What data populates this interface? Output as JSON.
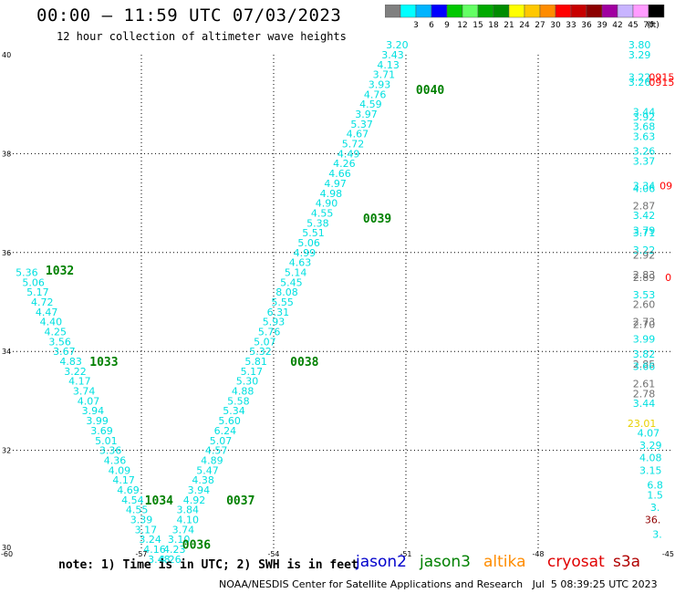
{
  "header": {
    "title": "00:00 – 11:59 UTC 07/03/2023",
    "subtitle": "12 hour collection of altimeter wave heights"
  },
  "colorbar": {
    "unit_label": "(ft)",
    "bins": [
      {
        "label": "",
        "color": "#808080"
      },
      {
        "label": "3",
        "color": "#00ffff"
      },
      {
        "label": "6",
        "color": "#00b4ff"
      },
      {
        "label": "9",
        "color": "#0000ff"
      },
      {
        "label": "12",
        "color": "#00c800"
      },
      {
        "label": "15",
        "color": "#64ff64"
      },
      {
        "label": "18",
        "color": "#00aa00"
      },
      {
        "label": "21",
        "color": "#008c00"
      },
      {
        "label": "24",
        "color": "#ffff00"
      },
      {
        "label": "27",
        "color": "#ffc800"
      },
      {
        "label": "30",
        "color": "#ff8c00"
      },
      {
        "label": "33",
        "color": "#ff0000"
      },
      {
        "label": "36",
        "color": "#c80000"
      },
      {
        "label": "39",
        "color": "#8c0000"
      },
      {
        "label": "42",
        "color": "#a000a0"
      },
      {
        "label": "45",
        "color": "#c8b4ff"
      },
      {
        "label": "70",
        "color": "#ff9cff"
      },
      {
        "label": "",
        "color": "#000000"
      }
    ]
  },
  "chart_data": {
    "type": "scatter",
    "title": "00:00 – 11:59 UTC 07/03/2023",
    "subtitle": "12 hour collection of altimeter wave heights",
    "xlim": [
      -60,
      -45
    ],
    "ylim": [
      30,
      40
    ],
    "x_ticks": [
      "-60",
      "-57",
      "-54",
      "-51",
      "-48",
      "-45"
    ],
    "y_ticks": [
      "30",
      "32",
      "34",
      "36",
      "38",
      "40"
    ],
    "grid": true,
    "colors": {
      "cyan": "#00e0e0",
      "gray": "#707070",
      "green": "#008000",
      "red": "#ff0000",
      "yellow": "#e8d000",
      "darkred": "#900000"
    },
    "time_labels": [
      {
        "text": "1032",
        "x": -58.85,
        "y": 35.65
      },
      {
        "text": "1033",
        "x": -57.85,
        "y": 33.8
      },
      {
        "text": "1034",
        "x": -56.6,
        "y": 31.0
      },
      {
        "text": "0036",
        "x": -55.75,
        "y": 30.1
      },
      {
        "text": "0037",
        "x": -54.75,
        "y": 31.0
      },
      {
        "text": "0038",
        "x": -53.3,
        "y": 33.8
      },
      {
        "text": "0039",
        "x": -51.65,
        "y": 36.7
      },
      {
        "text": "0040",
        "x": -50.45,
        "y": 39.3
      }
    ],
    "points": [
      {
        "x": -59.6,
        "y": 35.6,
        "v": "5.36",
        "c": "cyan"
      },
      {
        "x": -59.45,
        "y": 35.4,
        "v": "5.06",
        "c": "cyan"
      },
      {
        "x": -59.35,
        "y": 35.2,
        "v": "5.17",
        "c": "cyan"
      },
      {
        "x": -59.25,
        "y": 35.0,
        "v": "4.72",
        "c": "cyan"
      },
      {
        "x": -59.15,
        "y": 34.8,
        "v": "4.47",
        "c": "cyan"
      },
      {
        "x": -59.05,
        "y": 34.6,
        "v": "4.40",
        "c": "cyan"
      },
      {
        "x": -58.95,
        "y": 34.4,
        "v": "4.25",
        "c": "cyan"
      },
      {
        "x": -58.85,
        "y": 34.2,
        "v": "3.56",
        "c": "cyan"
      },
      {
        "x": -58.75,
        "y": 34.0,
        "v": "3.67",
        "c": "cyan"
      },
      {
        "x": -58.6,
        "y": 33.8,
        "v": "4.83",
        "c": "cyan"
      },
      {
        "x": -58.5,
        "y": 33.6,
        "v": "3.22",
        "c": "cyan"
      },
      {
        "x": -58.4,
        "y": 33.4,
        "v": "4.17",
        "c": "cyan"
      },
      {
        "x": -58.3,
        "y": 33.2,
        "v": "3.74",
        "c": "cyan"
      },
      {
        "x": -58.2,
        "y": 33.0,
        "v": "4.07",
        "c": "cyan"
      },
      {
        "x": -58.1,
        "y": 32.8,
        "v": "3.94",
        "c": "cyan"
      },
      {
        "x": -58.0,
        "y": 32.6,
        "v": "3.99",
        "c": "cyan"
      },
      {
        "x": -57.9,
        "y": 32.4,
        "v": "3.69",
        "c": "cyan"
      },
      {
        "x": -57.8,
        "y": 32.2,
        "v": "5.01",
        "c": "cyan"
      },
      {
        "x": -57.7,
        "y": 32.0,
        "v": "3.36",
        "c": "cyan"
      },
      {
        "x": -57.6,
        "y": 31.8,
        "v": "4.36",
        "c": "cyan"
      },
      {
        "x": -57.5,
        "y": 31.6,
        "v": "4.09",
        "c": "cyan"
      },
      {
        "x": -57.4,
        "y": 31.4,
        "v": "4.17",
        "c": "cyan"
      },
      {
        "x": -57.3,
        "y": 31.2,
        "v": "4.69",
        "c": "cyan"
      },
      {
        "x": -57.2,
        "y": 31.0,
        "v": "4.54",
        "c": "cyan"
      },
      {
        "x": -57.1,
        "y": 30.8,
        "v": "4.55",
        "c": "cyan"
      },
      {
        "x": -57.0,
        "y": 30.6,
        "v": "3.39",
        "c": "cyan"
      },
      {
        "x": -56.9,
        "y": 30.4,
        "v": "3.17",
        "c": "cyan"
      },
      {
        "x": -56.8,
        "y": 30.2,
        "v": "3.24",
        "c": "cyan"
      },
      {
        "x": -56.7,
        "y": 30.0,
        "v": "4.16",
        "c": "cyan"
      },
      {
        "x": -56.6,
        "y": 29.8,
        "v": "3.48",
        "c": "cyan"
      },
      {
        "x": -56.35,
        "y": 29.8,
        "v": "4.26",
        "c": "cyan"
      },
      {
        "x": -56.25,
        "y": 30.0,
        "v": "4.23",
        "c": "cyan"
      },
      {
        "x": -56.15,
        "y": 30.2,
        "v": "3.10",
        "c": "cyan"
      },
      {
        "x": -56.05,
        "y": 30.4,
        "v": "3.74",
        "c": "cyan"
      },
      {
        "x": -55.95,
        "y": 30.6,
        "v": "4.10",
        "c": "cyan"
      },
      {
        "x": -55.95,
        "y": 30.8,
        "v": "3.84",
        "c": "cyan"
      },
      {
        "x": -55.8,
        "y": 31.0,
        "v": "4.92",
        "c": "cyan"
      },
      {
        "x": -55.7,
        "y": 31.2,
        "v": "3.94",
        "c": "cyan"
      },
      {
        "x": -55.6,
        "y": 31.4,
        "v": "4.38",
        "c": "cyan"
      },
      {
        "x": -55.5,
        "y": 31.6,
        "v": "5.47",
        "c": "cyan"
      },
      {
        "x": -55.4,
        "y": 31.8,
        "v": "4.89",
        "c": "cyan"
      },
      {
        "x": -55.3,
        "y": 32.0,
        "v": "4.57",
        "c": "cyan"
      },
      {
        "x": -55.2,
        "y": 32.2,
        "v": "5.07",
        "c": "cyan"
      },
      {
        "x": -55.1,
        "y": 32.4,
        "v": "6.24",
        "c": "cyan"
      },
      {
        "x": -55.0,
        "y": 32.6,
        "v": "5.60",
        "c": "cyan"
      },
      {
        "x": -54.9,
        "y": 32.8,
        "v": "5.34",
        "c": "cyan"
      },
      {
        "x": -54.8,
        "y": 33.0,
        "v": "5.58",
        "c": "cyan"
      },
      {
        "x": -54.7,
        "y": 33.2,
        "v": "4.88",
        "c": "cyan"
      },
      {
        "x": -54.6,
        "y": 33.4,
        "v": "5.30",
        "c": "cyan"
      },
      {
        "x": -54.5,
        "y": 33.6,
        "v": "5.17",
        "c": "cyan"
      },
      {
        "x": -54.4,
        "y": 33.8,
        "v": "5.81",
        "c": "cyan"
      },
      {
        "x": -54.3,
        "y": 34.0,
        "v": "5.32",
        "c": "cyan"
      },
      {
        "x": -54.2,
        "y": 34.2,
        "v": "5.07",
        "c": "cyan"
      },
      {
        "x": -54.1,
        "y": 34.4,
        "v": "5.76",
        "c": "cyan"
      },
      {
        "x": -54.0,
        "y": 34.6,
        "v": "5.93",
        "c": "cyan"
      },
      {
        "x": -53.9,
        "y": 34.8,
        "v": "6.31",
        "c": "cyan"
      },
      {
        "x": -53.8,
        "y": 35.0,
        "v": "5.55",
        "c": "cyan"
      },
      {
        "x": -53.7,
        "y": 35.2,
        "v": "8.08",
        "c": "cyan"
      },
      {
        "x": -53.6,
        "y": 35.4,
        "v": "5.45",
        "c": "cyan"
      },
      {
        "x": -53.5,
        "y": 35.6,
        "v": "5.14",
        "c": "cyan"
      },
      {
        "x": -53.4,
        "y": 35.8,
        "v": "4.63",
        "c": "cyan"
      },
      {
        "x": -53.3,
        "y": 36.0,
        "v": "4.99",
        "c": "cyan"
      },
      {
        "x": -53.2,
        "y": 36.2,
        "v": "5.06",
        "c": "cyan"
      },
      {
        "x": -53.1,
        "y": 36.4,
        "v": "5.51",
        "c": "cyan"
      },
      {
        "x": -53.0,
        "y": 36.6,
        "v": "5.38",
        "c": "cyan"
      },
      {
        "x": -52.9,
        "y": 36.8,
        "v": "4.55",
        "c": "cyan"
      },
      {
        "x": -52.8,
        "y": 37.0,
        "v": "4.90",
        "c": "cyan"
      },
      {
        "x": -52.7,
        "y": 37.2,
        "v": "4.98",
        "c": "cyan"
      },
      {
        "x": -52.6,
        "y": 37.4,
        "v": "4.97",
        "c": "cyan"
      },
      {
        "x": -52.5,
        "y": 37.6,
        "v": "4.66",
        "c": "cyan"
      },
      {
        "x": -52.4,
        "y": 37.8,
        "v": "4.26",
        "c": "cyan"
      },
      {
        "x": -52.3,
        "y": 38.0,
        "v": "4.49",
        "c": "cyan"
      },
      {
        "x": -52.2,
        "y": 38.2,
        "v": "5.72",
        "c": "cyan"
      },
      {
        "x": -52.1,
        "y": 38.4,
        "v": "4.67",
        "c": "cyan"
      },
      {
        "x": -52.0,
        "y": 38.6,
        "v": "5.37",
        "c": "cyan"
      },
      {
        "x": -51.9,
        "y": 38.8,
        "v": "3.97",
        "c": "cyan"
      },
      {
        "x": -51.8,
        "y": 39.0,
        "v": "4.59",
        "c": "cyan"
      },
      {
        "x": -51.7,
        "y": 39.2,
        "v": "4.76",
        "c": "cyan"
      },
      {
        "x": -51.6,
        "y": 39.4,
        "v": "3.93",
        "c": "cyan"
      },
      {
        "x": -51.5,
        "y": 39.6,
        "v": "3.71",
        "c": "cyan"
      },
      {
        "x": -51.4,
        "y": 39.8,
        "v": "4.13",
        "c": "cyan"
      },
      {
        "x": -51.3,
        "y": 40.0,
        "v": "3.43",
        "c": "cyan"
      },
      {
        "x": -51.2,
        "y": 40.2,
        "v": "3.20",
        "c": "cyan"
      },
      {
        "x": -45.7,
        "y": 40.2,
        "v": "3.80",
        "c": "cyan"
      },
      {
        "x": -45.7,
        "y": 40.0,
        "v": "3.29",
        "c": "cyan"
      },
      {
        "x": -45.7,
        "y": 39.55,
        "v": "3.22",
        "c": "cyan"
      },
      {
        "x": -45.7,
        "y": 39.45,
        "v": "3.26",
        "c": "cyan"
      },
      {
        "x": -45.2,
        "y": 39.55,
        "v": "0915",
        "c": "red"
      },
      {
        "x": -45.2,
        "y": 39.45,
        "v": "0915",
        "c": "red"
      },
      {
        "x": -45.6,
        "y": 38.85,
        "v": "3.44",
        "c": "cyan"
      },
      {
        "x": -45.6,
        "y": 38.75,
        "v": "3.92",
        "c": "cyan"
      },
      {
        "x": -45.6,
        "y": 38.55,
        "v": "3.68",
        "c": "cyan"
      },
      {
        "x": -45.6,
        "y": 38.35,
        "v": "3.63",
        "c": "cyan"
      },
      {
        "x": -45.6,
        "y": 38.05,
        "v": "3.26",
        "c": "cyan"
      },
      {
        "x": -45.6,
        "y": 37.85,
        "v": "3.37",
        "c": "cyan"
      },
      {
        "x": -45.6,
        "y": 37.35,
        "v": "3.34",
        "c": "cyan"
      },
      {
        "x": -45.6,
        "y": 37.3,
        "v": "4.06",
        "c": "cyan"
      },
      {
        "x": -45.1,
        "y": 37.35,
        "v": "09",
        "c": "red"
      },
      {
        "x": -45.6,
        "y": 36.95,
        "v": "2.87",
        "c": "gray"
      },
      {
        "x": -45.6,
        "y": 36.75,
        "v": "3.42",
        "c": "cyan"
      },
      {
        "x": -45.6,
        "y": 36.45,
        "v": "3.79",
        "c": "cyan"
      },
      {
        "x": -45.6,
        "y": 36.4,
        "v": "3.71",
        "c": "cyan"
      },
      {
        "x": -45.6,
        "y": 36.05,
        "v": "3.22",
        "c": "cyan"
      },
      {
        "x": -45.6,
        "y": 35.95,
        "v": "2.92",
        "c": "gray"
      },
      {
        "x": -45.6,
        "y": 35.55,
        "v": "2.83",
        "c": "gray"
      },
      {
        "x": -45.6,
        "y": 35.5,
        "v": "2.89",
        "c": "gray"
      },
      {
        "x": -45.05,
        "y": 35.5,
        "v": "0",
        "c": "red"
      },
      {
        "x": -45.6,
        "y": 35.15,
        "v": "3.53",
        "c": "cyan"
      },
      {
        "x": -45.6,
        "y": 34.95,
        "v": "2.60",
        "c": "gray"
      },
      {
        "x": -45.6,
        "y": 34.6,
        "v": "2.73",
        "c": "gray"
      },
      {
        "x": -45.6,
        "y": 34.55,
        "v": "2.70",
        "c": "gray"
      },
      {
        "x": -45.6,
        "y": 34.25,
        "v": "3.99",
        "c": "cyan"
      },
      {
        "x": -45.6,
        "y": 33.95,
        "v": "3.82",
        "c": "cyan"
      },
      {
        "x": -45.6,
        "y": 33.75,
        "v": "2.85",
        "c": "gray"
      },
      {
        "x": -45.6,
        "y": 33.7,
        "v": "3.66",
        "c": "cyan"
      },
      {
        "x": -45.6,
        "y": 33.35,
        "v": "2.61",
        "c": "gray"
      },
      {
        "x": -45.6,
        "y": 33.15,
        "v": "2.78",
        "c": "gray"
      },
      {
        "x": -45.6,
        "y": 32.95,
        "v": "3.44",
        "c": "cyan"
      },
      {
        "x": -45.65,
        "y": 32.55,
        "v": "23.01",
        "c": "yellow"
      },
      {
        "x": -45.5,
        "y": 32.35,
        "v": "4.07",
        "c": "cyan"
      },
      {
        "x": -45.45,
        "y": 32.1,
        "v": "3.29",
        "c": "cyan"
      },
      {
        "x": -45.45,
        "y": 31.85,
        "v": "4.08",
        "c": "cyan"
      },
      {
        "x": -45.45,
        "y": 31.6,
        "v": "3.15",
        "c": "cyan"
      },
      {
        "x": -45.35,
        "y": 31.3,
        "v": "6.8",
        "c": "cyan"
      },
      {
        "x": -45.35,
        "y": 31.1,
        "v": "1.5",
        "c": "cyan"
      },
      {
        "x": -45.35,
        "y": 30.85,
        "v": "3.",
        "c": "cyan"
      },
      {
        "x": -45.4,
        "y": 30.6,
        "v": "36.",
        "c": "darkred"
      },
      {
        "x": -45.3,
        "y": 30.3,
        "v": "3.",
        "c": "cyan"
      }
    ],
    "legend": [
      {
        "name": "jason2",
        "color": "#0000cc"
      },
      {
        "name": "jason3",
        "color": "#008000"
      },
      {
        "name": "altika",
        "color": "#ff8c00"
      },
      {
        "name": "cryosat",
        "color": "#e00000"
      },
      {
        "name": "s3a",
        "color": "#b00000"
      }
    ]
  },
  "footer": {
    "note": "note: 1) Time is in UTC; 2) SWH is in feet",
    "credit": "NOAA/NESDIS Center for Satellite Applications and Research   Jul  5 08:39:25 UTC 2023"
  }
}
